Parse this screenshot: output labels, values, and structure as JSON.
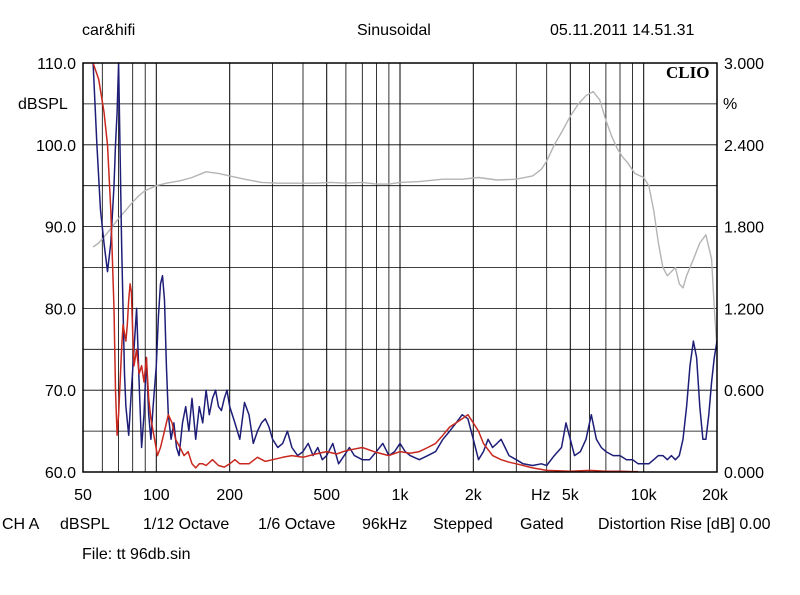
{
  "header": {
    "left": "car&hifi",
    "center": "Sinusoidal",
    "right": "05.11.2011 14.51.31"
  },
  "footer": {
    "status_items": [
      "CH A",
      "dBSPL",
      "1/12 Octave",
      "1/6 Octave",
      "96kHz",
      "Stepped",
      "Gated",
      "Distortion Rise [dB] 0.00"
    ],
    "file": "File: tt 96db.sin"
  },
  "chart_data": {
    "type": "line",
    "logo": "CLIO",
    "xscale": "log",
    "xlim": [
      50,
      20000
    ],
    "x_ticks": [
      {
        "value": 50,
        "label": "50"
      },
      {
        "value": 100,
        "label": "100"
      },
      {
        "value": 200,
        "label": "200"
      },
      {
        "value": 500,
        "label": "500"
      },
      {
        "value": 1000,
        "label": "1k"
      },
      {
        "value": 2000,
        "label": "2k"
      },
      {
        "value": 5000,
        "label": "5k"
      },
      {
        "value": 10000,
        "label": "10k"
      },
      {
        "value": 20000,
        "label": "20k"
      }
    ],
    "x_unit_label": "Hz",
    "ylim": [
      60,
      110
    ],
    "ylabel": "dBSPL",
    "y_ticks": [
      "60.0",
      "70.0",
      "80.0",
      "90.0",
      "100.0",
      "110.0"
    ],
    "y2lim": [
      0,
      3
    ],
    "y2label": "%",
    "y2_ticks": [
      "0.000",
      "0.600",
      "1.200",
      "1.800",
      "2.400",
      "3.000"
    ],
    "grid": true,
    "colors": {
      "gray": "#b4b4b4",
      "blue": "#1e1e78",
      "red": "#c8281e"
    },
    "series": [
      {
        "color": "gray",
        "axis": "y1",
        "points": [
          [
            55,
            87.5
          ],
          [
            58,
            88
          ],
          [
            62,
            89
          ],
          [
            66,
            90
          ],
          [
            70,
            91
          ],
          [
            75,
            92
          ],
          [
            80,
            93
          ],
          [
            85,
            93.8
          ],
          [
            90,
            94.4
          ],
          [
            100,
            95
          ],
          [
            110,
            95.3
          ],
          [
            125,
            95.6
          ],
          [
            140,
            96
          ],
          [
            160,
            96.7
          ],
          [
            180,
            96.5
          ],
          [
            200,
            96.2
          ],
          [
            230,
            95.8
          ],
          [
            270,
            95.4
          ],
          [
            320,
            95.3
          ],
          [
            380,
            95.3
          ],
          [
            450,
            95.3
          ],
          [
            520,
            95.4
          ],
          [
            600,
            95.3
          ],
          [
            700,
            95.4
          ],
          [
            800,
            95.2
          ],
          [
            900,
            95.2
          ],
          [
            1000,
            95.4
          ],
          [
            1200,
            95.5
          ],
          [
            1500,
            95.8
          ],
          [
            1800,
            95.8
          ],
          [
            2100,
            96
          ],
          [
            2500,
            95.7
          ],
          [
            3000,
            95.8
          ],
          [
            3500,
            96.2
          ],
          [
            3800,
            97
          ],
          [
            4000,
            98
          ],
          [
            4300,
            100
          ],
          [
            4600,
            101.5
          ],
          [
            5000,
            103.5
          ],
          [
            5400,
            105
          ],
          [
            5800,
            106
          ],
          [
            6200,
            106.5
          ],
          [
            6600,
            105.5
          ],
          [
            7000,
            103
          ],
          [
            7400,
            101
          ],
          [
            7800,
            99.5
          ],
          [
            8200,
            98.5
          ],
          [
            8600,
            97.8
          ],
          [
            9200,
            96.5
          ],
          [
            10000,
            96
          ],
          [
            10500,
            95
          ],
          [
            11000,
            92
          ],
          [
            11500,
            88
          ],
          [
            12000,
            85
          ],
          [
            12500,
            84
          ],
          [
            13000,
            84.5
          ],
          [
            13500,
            85
          ],
          [
            14000,
            83
          ],
          [
            14500,
            82.5
          ],
          [
            15000,
            84
          ],
          [
            16000,
            86
          ],
          [
            17000,
            88
          ],
          [
            18000,
            89
          ],
          [
            19000,
            86
          ],
          [
            19500,
            80
          ],
          [
            20000,
            75
          ]
        ]
      },
      {
        "color": "blue",
        "axis": "y1",
        "points": [
          [
            55,
            110
          ],
          [
            57,
            100
          ],
          [
            59,
            92
          ],
          [
            61,
            88
          ],
          [
            63,
            84.5
          ],
          [
            65,
            88
          ],
          [
            67,
            95
          ],
          [
            68,
            100
          ],
          [
            69,
            104
          ],
          [
            70,
            110
          ],
          [
            72,
            88
          ],
          [
            74,
            72
          ],
          [
            75,
            68
          ],
          [
            77,
            64.5
          ],
          [
            79,
            70
          ],
          [
            81,
            75
          ],
          [
            83,
            80
          ],
          [
            85,
            71
          ],
          [
            87,
            63
          ],
          [
            89,
            67
          ],
          [
            91,
            74
          ],
          [
            93,
            67
          ],
          [
            95,
            64
          ],
          [
            97,
            68
          ],
          [
            100,
            73
          ],
          [
            102,
            79
          ],
          [
            104,
            83
          ],
          [
            106,
            84
          ],
          [
            108,
            81
          ],
          [
            110,
            73
          ],
          [
            112,
            67
          ],
          [
            115,
            64
          ],
          [
            118,
            66
          ],
          [
            121,
            63
          ],
          [
            124,
            62
          ],
          [
            128,
            66
          ],
          [
            132,
            68
          ],
          [
            136,
            65
          ],
          [
            140,
            69
          ],
          [
            145,
            64
          ],
          [
            150,
            68
          ],
          [
            155,
            66
          ],
          [
            160,
            70
          ],
          [
            165,
            67
          ],
          [
            170,
            69
          ],
          [
            175,
            70
          ],
          [
            180,
            68
          ],
          [
            185,
            67.5
          ],
          [
            190,
            69
          ],
          [
            195,
            70
          ],
          [
            200,
            68
          ],
          [
            210,
            66
          ],
          [
            220,
            64
          ],
          [
            230,
            68.5
          ],
          [
            240,
            67
          ],
          [
            250,
            63.5
          ],
          [
            260,
            65
          ],
          [
            270,
            66
          ],
          [
            280,
            66.5
          ],
          [
            290,
            65.5
          ],
          [
            300,
            64
          ],
          [
            315,
            63
          ],
          [
            330,
            63.5
          ],
          [
            345,
            65
          ],
          [
            360,
            63
          ],
          [
            380,
            62
          ],
          [
            400,
            62.5
          ],
          [
            420,
            63.5
          ],
          [
            440,
            62
          ],
          [
            460,
            63
          ],
          [
            480,
            61.5
          ],
          [
            500,
            62
          ],
          [
            530,
            63.5
          ],
          [
            560,
            61
          ],
          [
            590,
            62
          ],
          [
            620,
            63
          ],
          [
            650,
            62
          ],
          [
            700,
            61.5
          ],
          [
            750,
            61.5
          ],
          [
            800,
            62.5
          ],
          [
            850,
            63.5
          ],
          [
            900,
            62
          ],
          [
            950,
            62.5
          ],
          [
            1000,
            63.5
          ],
          [
            1050,
            62.5
          ],
          [
            1100,
            62
          ],
          [
            1200,
            61.5
          ],
          [
            1300,
            62
          ],
          [
            1400,
            62.5
          ],
          [
            1500,
            64
          ],
          [
            1600,
            65
          ],
          [
            1700,
            66
          ],
          [
            1800,
            67
          ],
          [
            1900,
            66.5
          ],
          [
            2000,
            64
          ],
          [
            2100,
            61.5
          ],
          [
            2200,
            62.5
          ],
          [
            2300,
            64
          ],
          [
            2400,
            63
          ],
          [
            2500,
            63.5
          ],
          [
            2600,
            64
          ],
          [
            2700,
            63
          ],
          [
            2800,
            62
          ],
          [
            3000,
            61.5
          ],
          [
            3200,
            61
          ],
          [
            3500,
            60.8
          ],
          [
            3800,
            61
          ],
          [
            4000,
            60.8
          ],
          [
            4300,
            62
          ],
          [
            4600,
            63
          ],
          [
            4800,
            66
          ],
          [
            5000,
            64
          ],
          [
            5200,
            62
          ],
          [
            5500,
            62.5
          ],
          [
            5800,
            64
          ],
          [
            6100,
            67
          ],
          [
            6400,
            64
          ],
          [
            6700,
            63
          ],
          [
            7000,
            62.5
          ],
          [
            7500,
            62
          ],
          [
            8000,
            62
          ],
          [
            8500,
            61.5
          ],
          [
            9000,
            61.5
          ],
          [
            9500,
            61
          ],
          [
            10000,
            61
          ],
          [
            10500,
            61
          ],
          [
            11000,
            61.5
          ],
          [
            11500,
            62
          ],
          [
            12000,
            62
          ],
          [
            12500,
            61.5
          ],
          [
            13000,
            62
          ],
          [
            13500,
            61.5
          ],
          [
            14000,
            62
          ],
          [
            14500,
            64
          ],
          [
            15000,
            68
          ],
          [
            15500,
            73
          ],
          [
            16000,
            76
          ],
          [
            16500,
            74
          ],
          [
            17000,
            68
          ],
          [
            17500,
            64
          ],
          [
            18000,
            64
          ],
          [
            18500,
            67
          ],
          [
            19000,
            71
          ],
          [
            19500,
            74
          ],
          [
            20000,
            76
          ]
        ]
      },
      {
        "color": "red",
        "axis": "y1",
        "points": [
          [
            55,
            110
          ],
          [
            58,
            108
          ],
          [
            61,
            104
          ],
          [
            63,
            100
          ],
          [
            65,
            92
          ],
          [
            67,
            80
          ],
          [
            68,
            70
          ],
          [
            69,
            64.5
          ],
          [
            70,
            67
          ],
          [
            72,
            75
          ],
          [
            73,
            78
          ],
          [
            74,
            77
          ],
          [
            75,
            76
          ],
          [
            76,
            78
          ],
          [
            77,
            81
          ],
          [
            78,
            83
          ],
          [
            79,
            82
          ],
          [
            80,
            77
          ],
          [
            81,
            73
          ],
          [
            83,
            75
          ],
          [
            85,
            72
          ],
          [
            87,
            73
          ],
          [
            89,
            71
          ],
          [
            91,
            74
          ],
          [
            93,
            69
          ],
          [
            95,
            66.5
          ],
          [
            97,
            65
          ],
          [
            99,
            63.5
          ],
          [
            101,
            62
          ],
          [
            104,
            63
          ],
          [
            108,
            65
          ],
          [
            112,
            67
          ],
          [
            116,
            66
          ],
          [
            120,
            64
          ],
          [
            125,
            63
          ],
          [
            130,
            62
          ],
          [
            135,
            62.5
          ],
          [
            140,
            61
          ],
          [
            145,
            60.5
          ],
          [
            150,
            61
          ],
          [
            155,
            61
          ],
          [
            160,
            60.8
          ],
          [
            170,
            61.5
          ],
          [
            180,
            60.8
          ],
          [
            190,
            60.6
          ],
          [
            200,
            61
          ],
          [
            210,
            61.5
          ],
          [
            220,
            61
          ],
          [
            240,
            61
          ],
          [
            260,
            61.8
          ],
          [
            280,
            61.3
          ],
          [
            300,
            61.5
          ],
          [
            330,
            61.8
          ],
          [
            360,
            62
          ],
          [
            400,
            61.8
          ],
          [
            450,
            62.2
          ],
          [
            500,
            62.5
          ],
          [
            550,
            62.2
          ],
          [
            600,
            62.6
          ],
          [
            700,
            63
          ],
          [
            800,
            62.4
          ],
          [
            900,
            62
          ],
          [
            1000,
            62.5
          ],
          [
            1100,
            62.3
          ],
          [
            1200,
            62.5
          ],
          [
            1300,
            63
          ],
          [
            1400,
            63.5
          ],
          [
            1500,
            64.5
          ],
          [
            1600,
            65.5
          ],
          [
            1700,
            66
          ],
          [
            1800,
            66.5
          ],
          [
            1900,
            67
          ],
          [
            2000,
            66
          ],
          [
            2100,
            65
          ],
          [
            2200,
            63.5
          ],
          [
            2400,
            62
          ],
          [
            2600,
            61.5
          ],
          [
            2800,
            61.2
          ],
          [
            3000,
            61
          ],
          [
            3500,
            60.5
          ],
          [
            4000,
            60.2
          ],
          [
            5000,
            60.1
          ],
          [
            6000,
            60.2
          ],
          [
            7000,
            60.1
          ],
          [
            8000,
            60.1
          ],
          [
            9000,
            60.05
          ],
          [
            9500,
            60.05
          ]
        ]
      }
    ]
  }
}
